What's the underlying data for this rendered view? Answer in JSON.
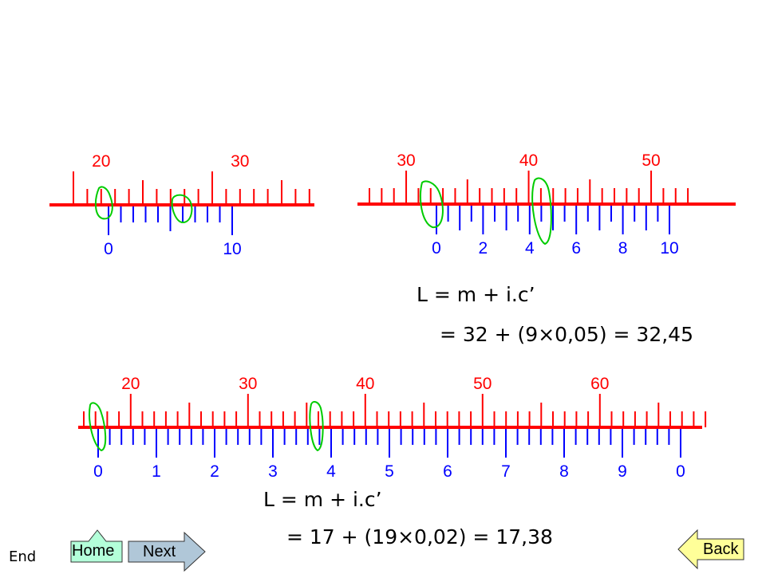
{
  "diagram": {
    "colors": {
      "main": "#ff0000",
      "vernier": "#0000ff",
      "highlight": "#00cc00"
    },
    "scale1": {
      "main_labels": [
        "20",
        "30"
      ],
      "vernier_labels": [
        "0",
        "10"
      ]
    },
    "scale2": {
      "main_labels": [
        "30",
        "40",
        "50"
      ],
      "vernier_labels": [
        "0",
        "2",
        "4",
        "6",
        "8",
        "10"
      ]
    },
    "scale3": {
      "main_labels": [
        "20",
        "30",
        "40",
        "50",
        "60"
      ],
      "vernier_labels": [
        "0",
        "1",
        "2",
        "3",
        "4",
        "5",
        "6",
        "7",
        "8",
        "9",
        "0"
      ]
    }
  },
  "formula1": {
    "line1": "L = m + i.c’",
    "line2": "= 32 + (9×0,05)  = 32,45"
  },
  "formula2": {
    "line1": "L = m + i.c’",
    "line2": "= 17 + (19×0,02)  = 17,38"
  },
  "footer": {
    "end_label": "End"
  },
  "nav": {
    "home_label": "Home",
    "next_label": "Next",
    "back_label": "Back"
  }
}
